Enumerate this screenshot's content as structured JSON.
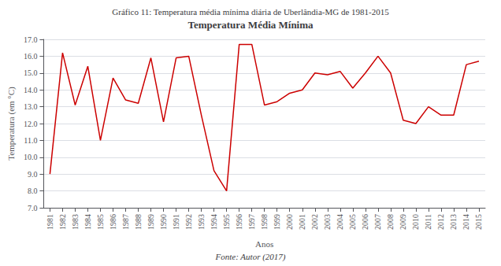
{
  "chart_data": {
    "type": "line",
    "title": "Temperatura Média Mínima",
    "annotations": [
      "Gráfico 11: Temperatura média mínima diária de Uberlândia-MG de 1981-2015",
      "Fonte: Autor (2017)"
    ],
    "x_label": "Anos",
    "y_label": "Temperatura (em °C)",
    "x": [
      1981,
      1982,
      1983,
      1984,
      1985,
      1986,
      1987,
      1988,
      1989,
      1990,
      1991,
      1992,
      1993,
      1994,
      1995,
      1996,
      1997,
      1998,
      1999,
      2000,
      2001,
      2002,
      2003,
      2004,
      2005,
      2006,
      2007,
      2008,
      2009,
      2010,
      2011,
      2012,
      2013,
      2014,
      2015
    ],
    "values": [
      9.0,
      16.2,
      13.1,
      15.4,
      11.0,
      14.7,
      13.4,
      13.2,
      15.9,
      12.1,
      15.9,
      16.0,
      12.5,
      9.2,
      8.0,
      16.7,
      16.7,
      13.1,
      13.3,
      13.8,
      14.0,
      15.0,
      14.9,
      15.1,
      14.1,
      15.0,
      16.0,
      15.0,
      12.2,
      12.0,
      13.0,
      12.5,
      12.5,
      15.5,
      15.7
    ],
    "color": "#cc0000",
    "xlim": [
      1980.5,
      2015.5
    ],
    "xticks": [
      1981,
      1982,
      1983,
      1984,
      1985,
      1986,
      1987,
      1988,
      1989,
      1990,
      1991,
      1992,
      1993,
      1994,
      1995,
      1996,
      1997,
      1998,
      1999,
      2000,
      2001,
      2002,
      2003,
      2004,
      2005,
      2006,
      2007,
      2008,
      2009,
      2010,
      2011,
      2012,
      2013,
      2014,
      2015
    ],
    "ylim": [
      7.0,
      17.0
    ],
    "yticks": [
      {
        "value": 7,
        "label": "7.0"
      },
      {
        "value": 8,
        "label": "8.0"
      },
      {
        "value": 9,
        "label": "9.0"
      },
      {
        "value": 10,
        "label": "10.0"
      },
      {
        "value": 11,
        "label": "11.0"
      },
      {
        "value": 12,
        "label": "12.0"
      },
      {
        "value": 13,
        "label": "13.0"
      },
      {
        "value": 14,
        "label": "14.0"
      },
      {
        "value": 15,
        "label": "15.0"
      },
      {
        "value": 16,
        "label": "16.0"
      },
      {
        "value": 17,
        "label": "17.0"
      }
    ],
    "grid": true
  }
}
